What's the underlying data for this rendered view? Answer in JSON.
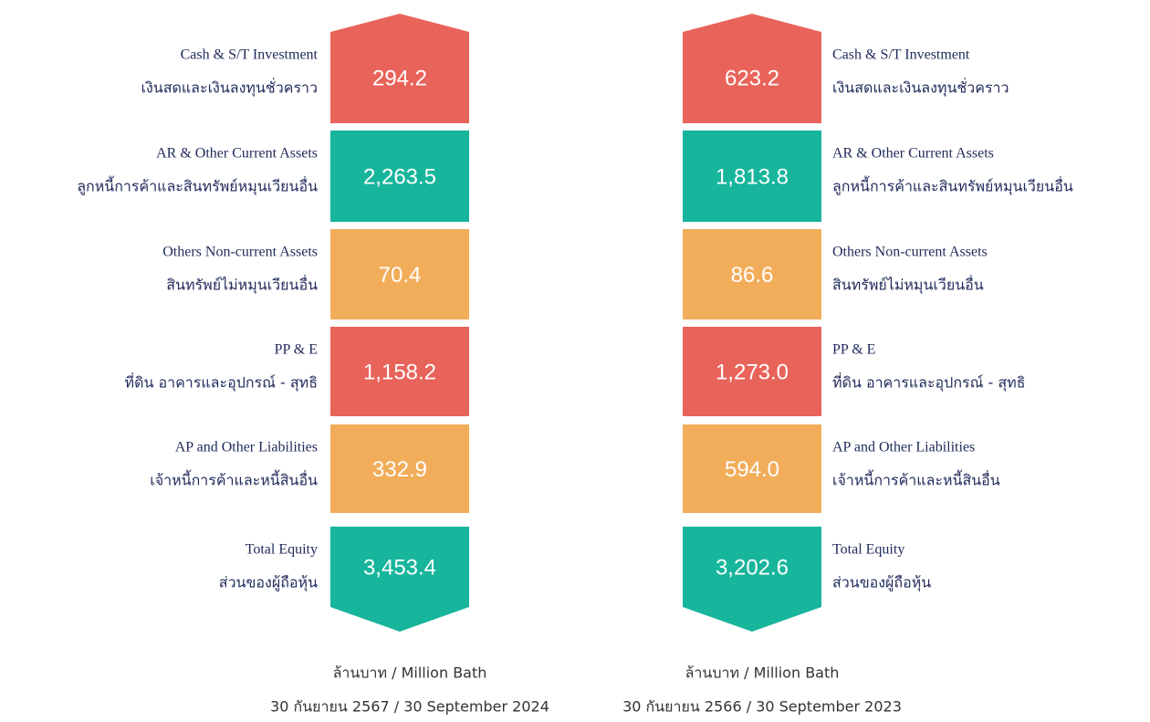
{
  "columns": [
    {
      "items": [
        {
          "label_en": "Cash & S/T Investment",
          "label_th": "เงินสดและเงินลงทุนชั่วคราว",
          "value": "294.2",
          "color": "#e8635a"
        },
        {
          "label_en": "AR & Other Current Assets",
          "label_th": "ลูกหนี้การค้าและสินทรัพย์หมุนเวียนอื่น",
          "value": "2,263.5",
          "color": "#17b59b"
        },
        {
          "label_en": "Others Non-current Assets",
          "label_th": "สินทรัพย์ไม่หมุนเวียนอื่น",
          "value": "70.4",
          "color": "#f2ad5b"
        },
        {
          "label_en": "PP & E",
          "label_th": "ที่ดิน อาคารและอุปกรณ์ - สุทธิ",
          "value": "1,158.2",
          "color": "#e8635a"
        },
        {
          "label_en": "AP and Other Liabilities",
          "label_th": "เจ้าหนี้การค้าและหนี้สินอื่น",
          "value": "332.9",
          "color": "#f2ad5b"
        },
        {
          "label_en": "Total Equity",
          "label_th": "ส่วนของผู้ถือหุ้น",
          "value": "3,453.4",
          "color": "#17b59b"
        }
      ],
      "unit": "ล้านบาท / Million Bath",
      "date": "30 กันยายน 2567 /  30 September 2024"
    },
    {
      "items": [
        {
          "label_en": "Cash & S/T Investment",
          "label_th": "เงินสดและเงินลงทุนชั่วคราว",
          "value": "623.2",
          "color": "#e8635a"
        },
        {
          "label_en": "AR & Other Current Assets",
          "label_th": "ลูกหนี้การค้าและสินทรัพย์หมุนเวียนอื่น",
          "value": "1,813.8",
          "color": "#17b59b"
        },
        {
          "label_en": "Others Non-current Assets",
          "label_th": "สินทรัพย์ไม่หมุนเวียนอื่น",
          "value": "86.6",
          "color": "#f2ad5b"
        },
        {
          "label_en": "PP & E",
          "label_th": "ที่ดิน อาคารและอุปกรณ์ - สุทธิ",
          "value": "1,273.0",
          "color": "#e8635a"
        },
        {
          "label_en": "AP and Other Liabilities",
          "label_th": "เจ้าหนี้การค้าและหนี้สินอื่น",
          "value": "594.0",
          "color": "#f2ad5b"
        },
        {
          "label_en": "Total Equity",
          "label_th": "ส่วนของผู้ถือหุ้น",
          "value": "3,202.6",
          "color": "#17b59b"
        }
      ],
      "unit": "ล้านบาท / Million Bath",
      "date": "30 กันยายน 2566 /  30 September 2023"
    }
  ]
}
